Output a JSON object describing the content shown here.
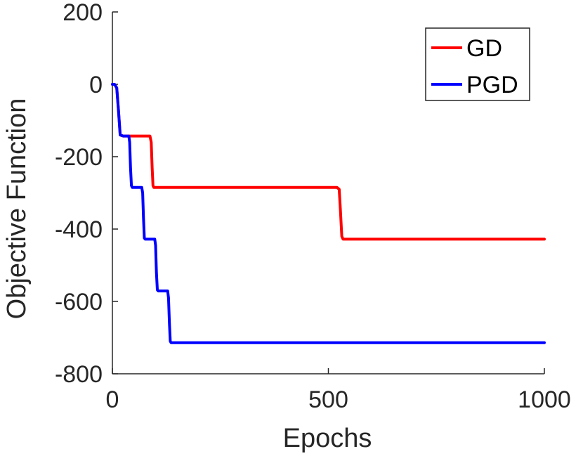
{
  "chart_data": {
    "type": "line",
    "xlabel": "Epochs",
    "ylabel": "Objective Function",
    "xlim": [
      0,
      1000
    ],
    "ylim": [
      -800,
      200
    ],
    "xticks": [
      0,
      500,
      1000
    ],
    "yticks": [
      200,
      0,
      -200,
      -400,
      -600,
      -800
    ],
    "grid": false,
    "legend_position": "top-right",
    "series": [
      {
        "name": "GD",
        "color": "#ff0000",
        "x": [
          0,
          5,
          10,
          14,
          18,
          25,
          60,
          87,
          90,
          92,
          94,
          96,
          100,
          200,
          300,
          400,
          500,
          520,
          525,
          528,
          531,
          534,
          540,
          700,
          850,
          1000
        ],
        "y": [
          0,
          0,
          -10,
          -70,
          -140,
          -143,
          -143,
          -143,
          -160,
          -230,
          -280,
          -285,
          -285,
          -285,
          -285,
          -285,
          -285,
          -285,
          -290,
          -350,
          -420,
          -428,
          -428,
          -428,
          -428,
          -428
        ]
      },
      {
        "name": "PGD",
        "color": "#0000ff",
        "x": [
          0,
          5,
          10,
          14,
          18,
          25,
          38,
          40,
          42,
          44,
          46,
          50,
          68,
          70,
          72,
          74,
          76,
          80,
          98,
          100,
          102,
          104,
          106,
          110,
          128,
          130,
          132,
          134,
          136,
          140,
          300,
          500,
          700,
          850,
          1000
        ],
        "y": [
          0,
          0,
          -10,
          -70,
          -140,
          -143,
          -143,
          -160,
          -230,
          -280,
          -285,
          -285,
          -285,
          -300,
          -370,
          -425,
          -428,
          -428,
          -428,
          -445,
          -520,
          -568,
          -571,
          -571,
          -571,
          -590,
          -660,
          -710,
          -714,
          -714,
          -714,
          -714,
          -714,
          -714,
          -714
        ]
      }
    ]
  }
}
